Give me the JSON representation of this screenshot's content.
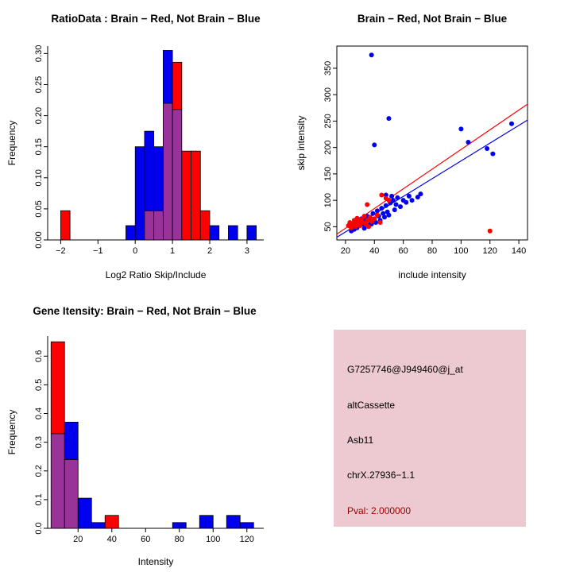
{
  "figure": {
    "bg": "#FFFFFF",
    "colors": {
      "red": "#FF0000",
      "blue": "#0000EE",
      "overlap": "#993299",
      "axis": "#000000"
    }
  },
  "chart_data": [
    {
      "type": "bar",
      "subtype": "overlaid-histogram",
      "title": "RatioData : Brain − Red, Not Brain − Blue",
      "xlabel": "Log2 Ratio Skip/Include",
      "ylabel": "Frequency",
      "xlim": [
        -2.35,
        3.45
      ],
      "ylim": [
        0,
        0.312
      ],
      "xticks": [
        "−2",
        "−1",
        "0",
        "1",
        "2",
        "3"
      ],
      "yticks": [
        "0.00",
        "0.05",
        "0.10",
        "0.15",
        "0.20",
        "0.25",
        "0.30"
      ],
      "bin_width": 0.25,
      "grid": false,
      "box": false,
      "legend": "title colors: Brain = red, Not Brain = blue",
      "series": [
        {
          "name": "Not Brain",
          "color_key": "blue",
          "color": "#0000EE",
          "bins": [
            {
              "x": -0.25,
              "h": 0.023
            },
            {
              "x": 0.0,
              "h": 0.15
            },
            {
              "x": 0.25,
              "h": 0.175
            },
            {
              "x": 0.5,
              "h": 0.15
            },
            {
              "x": 0.75,
              "h": 0.305
            },
            {
              "x": 1.0,
              "h": 0.21
            },
            {
              "x": 2.0,
              "h": 0.023
            },
            {
              "x": 2.5,
              "h": 0.023
            },
            {
              "x": 3.0,
              "h": 0.023
            }
          ]
        },
        {
          "name": "Brain",
          "color_key": "red",
          "color": "#FF0000",
          "bins": [
            {
              "x": -2.0,
              "h": 0.047
            },
            {
              "x": 0.25,
              "h": 0.047
            },
            {
              "x": 0.5,
              "h": 0.047
            },
            {
              "x": 0.75,
              "h": 0.22
            },
            {
              "x": 1.0,
              "h": 0.286
            },
            {
              "x": 1.25,
              "h": 0.143
            },
            {
              "x": 1.5,
              "h": 0.143
            },
            {
              "x": 1.75,
              "h": 0.047
            }
          ]
        }
      ]
    },
    {
      "type": "scatter",
      "title": "Brain − Red, Not Brain − Blue",
      "xlabel": "include intensity",
      "ylabel": "skip intensity",
      "xlim": [
        14,
        146
      ],
      "ylim": [
        25,
        392
      ],
      "xticks": [
        "20",
        "40",
        "60",
        "80",
        "100",
        "120",
        "140"
      ],
      "yticks": [
        "50",
        "100",
        "150",
        "200",
        "250",
        "300",
        "350"
      ],
      "grid": false,
      "box": true,
      "series": [
        {
          "name": "Not Brain",
          "color_key": "blue",
          "color": "#0000EE",
          "points": [
            [
              24,
              42
            ],
            [
              25,
              50
            ],
            [
              26,
              45
            ],
            [
              27,
              55
            ],
            [
              28,
              48
            ],
            [
              29,
              60
            ],
            [
              30,
              52
            ],
            [
              31,
              65
            ],
            [
              32,
              55
            ],
            [
              33,
              47
            ],
            [
              34,
              62
            ],
            [
              35,
              70
            ],
            [
              36,
              52
            ],
            [
              37,
              60
            ],
            [
              38,
              55
            ],
            [
              39,
              75
            ],
            [
              40,
              65
            ],
            [
              41,
              58
            ],
            [
              42,
              80
            ],
            [
              43,
              70
            ],
            [
              44,
              62
            ],
            [
              45,
              85
            ],
            [
              46,
              75
            ],
            [
              47,
              68
            ],
            [
              48,
              90
            ],
            [
              48,
              110
            ],
            [
              49,
              78
            ],
            [
              50,
              72
            ],
            [
              51,
              95
            ],
            [
              52,
              108
            ],
            [
              53,
              100
            ],
            [
              54,
              82
            ],
            [
              55,
              92
            ],
            [
              56,
              105
            ],
            [
              58,
              88
            ],
            [
              60,
              100
            ],
            [
              62,
              96
            ],
            [
              64,
              108
            ],
            [
              66,
              100
            ],
            [
              70,
              106
            ],
            [
              72,
              112
            ],
            [
              38,
              375
            ],
            [
              40,
              205
            ],
            [
              50,
              255
            ],
            [
              100,
              235
            ],
            [
              105,
              210
            ],
            [
              118,
              198
            ],
            [
              122,
              188
            ],
            [
              135,
              245
            ]
          ]
        },
        {
          "name": "Brain",
          "color_key": "red",
          "color": "#FF0000",
          "points": [
            [
              22,
              52
            ],
            [
              23,
              58
            ],
            [
              24,
              48
            ],
            [
              25,
              55
            ],
            [
              26,
              62
            ],
            [
              27,
              50
            ],
            [
              28,
              57
            ],
            [
              28,
              66
            ],
            [
              29,
              60
            ],
            [
              30,
              52
            ],
            [
              31,
              64
            ],
            [
              32,
              58
            ],
            [
              33,
              70
            ],
            [
              34,
              55
            ],
            [
              35,
              62
            ],
            [
              35,
              92
            ],
            [
              36,
              50
            ],
            [
              37,
              68
            ],
            [
              38,
              60
            ],
            [
              40,
              65
            ],
            [
              42,
              72
            ],
            [
              44,
              58
            ],
            [
              45,
              110
            ],
            [
              48,
              104
            ],
            [
              50,
              100
            ],
            [
              120,
              42
            ]
          ]
        }
      ],
      "lines": [
        {
          "name": "brain-fit-line",
          "color_key": "red",
          "x1": 14,
          "y1": 36,
          "x2": 146,
          "y2": 282
        },
        {
          "name": "notbrain-fit-line",
          "color_key": "blue",
          "x1": 14,
          "y1": 30,
          "x2": 146,
          "y2": 252
        }
      ]
    },
    {
      "type": "bar",
      "subtype": "overlaid-histogram",
      "title": "Gene Itensity: Brain − Red, Not Brain − Blue",
      "xlabel": "Intensity",
      "ylabel": "Frequency",
      "xlim": [
        2,
        130
      ],
      "ylim": [
        0,
        0.67
      ],
      "xticks": [
        "20",
        "40",
        "60",
        "80",
        "100",
        "120"
      ],
      "yticks": [
        "0.0",
        "0.1",
        "0.2",
        "0.3",
        "0.4",
        "0.5",
        "0.6"
      ],
      "bin_width": 8,
      "grid": false,
      "box": false,
      "series": [
        {
          "name": "Not Brain",
          "color_key": "blue",
          "color": "#0000EE",
          "bins": [
            {
              "x": 4,
              "h": 0.33
            },
            {
              "x": 12,
              "h": 0.37
            },
            {
              "x": 20,
              "h": 0.105
            },
            {
              "x": 28,
              "h": 0.02
            },
            {
              "x": 76,
              "h": 0.02
            },
            {
              "x": 92,
              "h": 0.045
            },
            {
              "x": 108,
              "h": 0.045
            },
            {
              "x": 116,
              "h": 0.02
            }
          ]
        },
        {
          "name": "Brain",
          "color_key": "red",
          "color": "#FF0000",
          "bins": [
            {
              "x": 4,
              "h": 0.65
            },
            {
              "x": 12,
              "h": 0.24
            },
            {
              "x": 36,
              "h": 0.045
            }
          ]
        }
      ]
    }
  ],
  "info_box": {
    "bg": "#EDC9D2",
    "lines": [
      {
        "text": "G7257746@J949460@j_at",
        "color": "#000000"
      },
      {
        "text": "altCassette",
        "color": "#000000"
      },
      {
        "text": "Asb11",
        "color": "#000000"
      },
      {
        "text": "chrX.27936−1.1",
        "color": "#000000"
      },
      {
        "text": "Pval: 2.000000",
        "color": "#990000"
      }
    ]
  }
}
